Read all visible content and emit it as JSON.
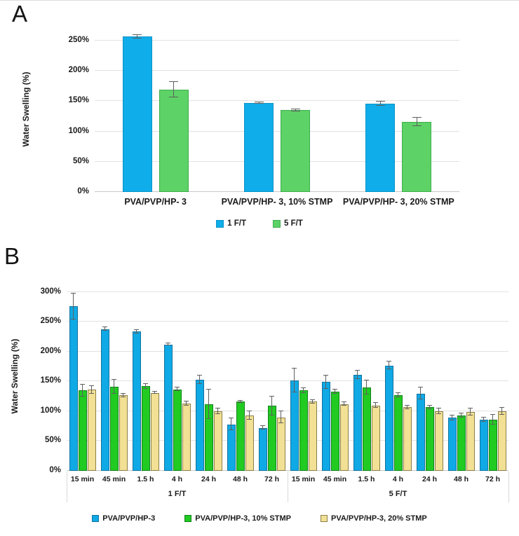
{
  "figure": {
    "panel_a_label": "A",
    "panel_b_label": "B"
  },
  "colors": {
    "background": "#ffffff",
    "gridline": "#e2e2e2",
    "axis_line": "#c8c8c8",
    "error_bar": "#5f5f5f",
    "divider": "#d9d9d9",
    "text": "#1a1a1a"
  },
  "chart_data": [
    {
      "id": "panel-a",
      "type": "bar",
      "title": "",
      "ylabel": "Water Swelling (%)",
      "xlabel": "",
      "grid": true,
      "legend_position": "bottom",
      "yticks_pct": [
        0,
        50,
        100,
        150,
        200,
        250
      ],
      "ytick_labels": [
        "0%",
        "50%",
        "100%",
        "150%",
        "200%",
        "250%"
      ],
      "ylim": [
        0,
        271
      ],
      "blocks": [
        {
          "label": null,
          "categories": [
            "PVA/PVP/HP- 3",
            "PVA/PVP/HP- 3, 10% STMP",
            "PVA/PVP/HP- 3, 20% STMP"
          ]
        }
      ],
      "series": [
        {
          "name": "1 F/T",
          "color": "#0fadea",
          "border": "#0c93c6",
          "values": [
            [
              257,
              147,
              146
            ]
          ],
          "errors": [
            [
              3,
              1,
              4
            ]
          ]
        },
        {
          "name": "5 F/T",
          "color": "#5dd266",
          "border": "#3fae4e",
          "values": [
            [
              169,
              135,
              116
            ]
          ],
          "errors": [
            [
              13,
              2,
              7
            ]
          ]
        }
      ]
    },
    {
      "id": "panel-b",
      "type": "bar",
      "title": "",
      "ylabel": "Water Swelling (%)",
      "xlabel": "",
      "grid": true,
      "legend_position": "bottom",
      "yticks_pct": [
        0,
        50,
        100,
        150,
        200,
        250,
        300
      ],
      "ytick_labels": [
        "0%",
        "50%",
        "100%",
        "150%",
        "200%",
        "250%",
        "300%"
      ],
      "ylim": [
        0,
        314
      ],
      "blocks": [
        {
          "label": "1 F/T",
          "categories": [
            "15 min",
            "45 min",
            "1.5 h",
            "4 h",
            "24 h",
            "48 h",
            "72 h"
          ]
        },
        {
          "label": "5 F/T",
          "categories": [
            "15 min",
            "45 min",
            "1.5 h",
            "4 h",
            "24 h",
            "48 h",
            "72 h"
          ]
        }
      ],
      "series": [
        {
          "name": "PVA/PVP/HP-3",
          "color": "#0fa9e6",
          "border": "#12739e",
          "values": [
            [
              276,
              238,
              234,
              212,
              153,
              78,
              72
            ],
            [
              152,
              149,
              161,
              177,
              130,
              89,
              86
            ]
          ],
          "errors": [
            [
              22,
              3,
              3,
              2,
              7,
              10,
              3
            ],
            [
              20,
              11,
              7,
              6,
              10,
              4,
              4
            ]
          ]
        },
        {
          "name": "PVA/PVP/HP-3, 10% STMP",
          "color": "#21cb21",
          "border": "#12821b",
          "values": [
            [
              135,
              141,
              142,
              137,
              112,
              116,
              109
            ],
            [
              135,
              133,
              140,
              127,
              107,
              93,
              86
            ]
          ],
          "errors": [
            [
              10,
              12,
              4,
              3,
              25,
              2,
              16
            ],
            [
              4,
              4,
              12,
              4,
              3,
              4,
              8
            ]
          ]
        },
        {
          "name": "PVA/PVP/HP-3, 20% STMP",
          "color": "#f2e094",
          "border": "#8c7f49",
          "values": [
            [
              136,
              127,
              131,
              113,
              100,
              93,
              90
            ],
            [
              116,
              112,
              110,
              107,
              100,
              99,
              100
            ]
          ],
          "errors": [
            [
              6,
              3,
              2,
              3,
              5,
              7,
              10
            ],
            [
              3,
              3,
              4,
              3,
              5,
              6,
              6
            ]
          ]
        }
      ]
    }
  ]
}
